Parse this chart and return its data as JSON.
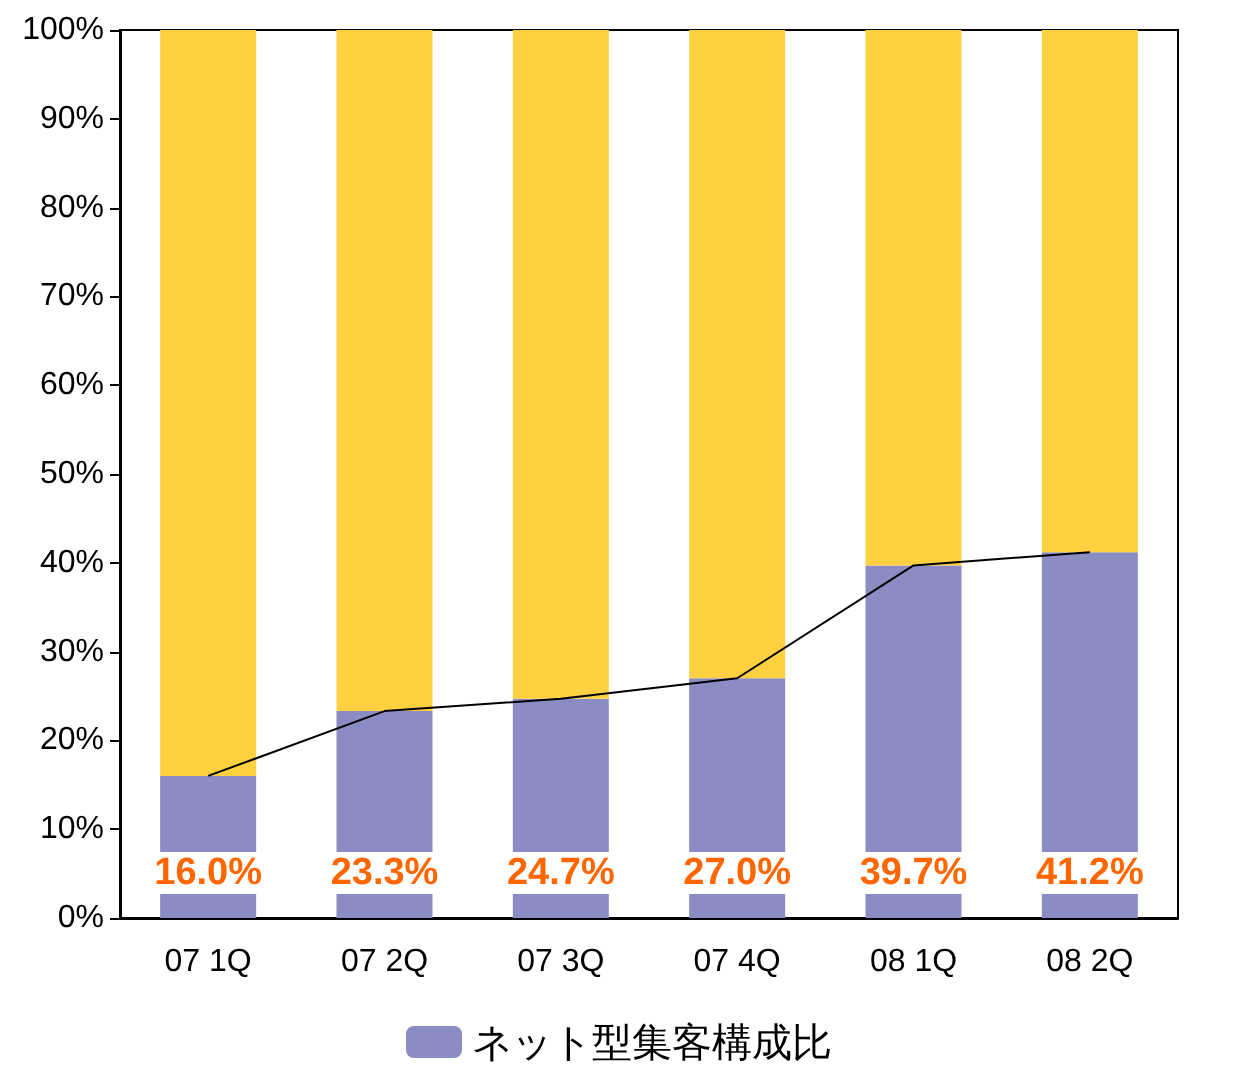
{
  "chart_data": {
    "type": "bar",
    "stacked": true,
    "categories": [
      "07 1Q",
      "07 2Q",
      "07 3Q",
      "07 4Q",
      "08 1Q",
      "08 2Q"
    ],
    "series": [
      {
        "name": "ネット型集客構成比",
        "color": "#8c8cc4",
        "values": [
          16.0,
          23.3,
          24.7,
          27.0,
          39.7,
          41.2
        ],
        "value_labels": [
          "16.0%",
          "23.3%",
          "24.7%",
          "27.0%",
          "39.7%",
          "41.2%"
        ]
      },
      {
        "color": "#ffd040",
        "values": [
          84.0,
          76.7,
          75.3,
          73.0,
          60.3,
          58.8
        ]
      },
      {
        "type": "line",
        "color": "#000000",
        "values": [
          16.0,
          23.3,
          24.7,
          27.0,
          39.7,
          41.2
        ]
      }
    ],
    "ylim": [
      0,
      100
    ],
    "yticks": [
      {
        "value": 0,
        "label": "0%"
      },
      {
        "value": 10,
        "label": "10%"
      },
      {
        "value": 20,
        "label": "20%"
      },
      {
        "value": 30,
        "label": "30%"
      },
      {
        "value": 40,
        "label": "40%"
      },
      {
        "value": 50,
        "label": "50%"
      },
      {
        "value": 60,
        "label": "60%"
      },
      {
        "value": 70,
        "label": "70%"
      },
      {
        "value": 80,
        "label": "80%"
      },
      {
        "value": 90,
        "label": "90%"
      },
      {
        "value": 100,
        "label": "100%"
      }
    ],
    "grid": false,
    "legend": "bottom"
  }
}
